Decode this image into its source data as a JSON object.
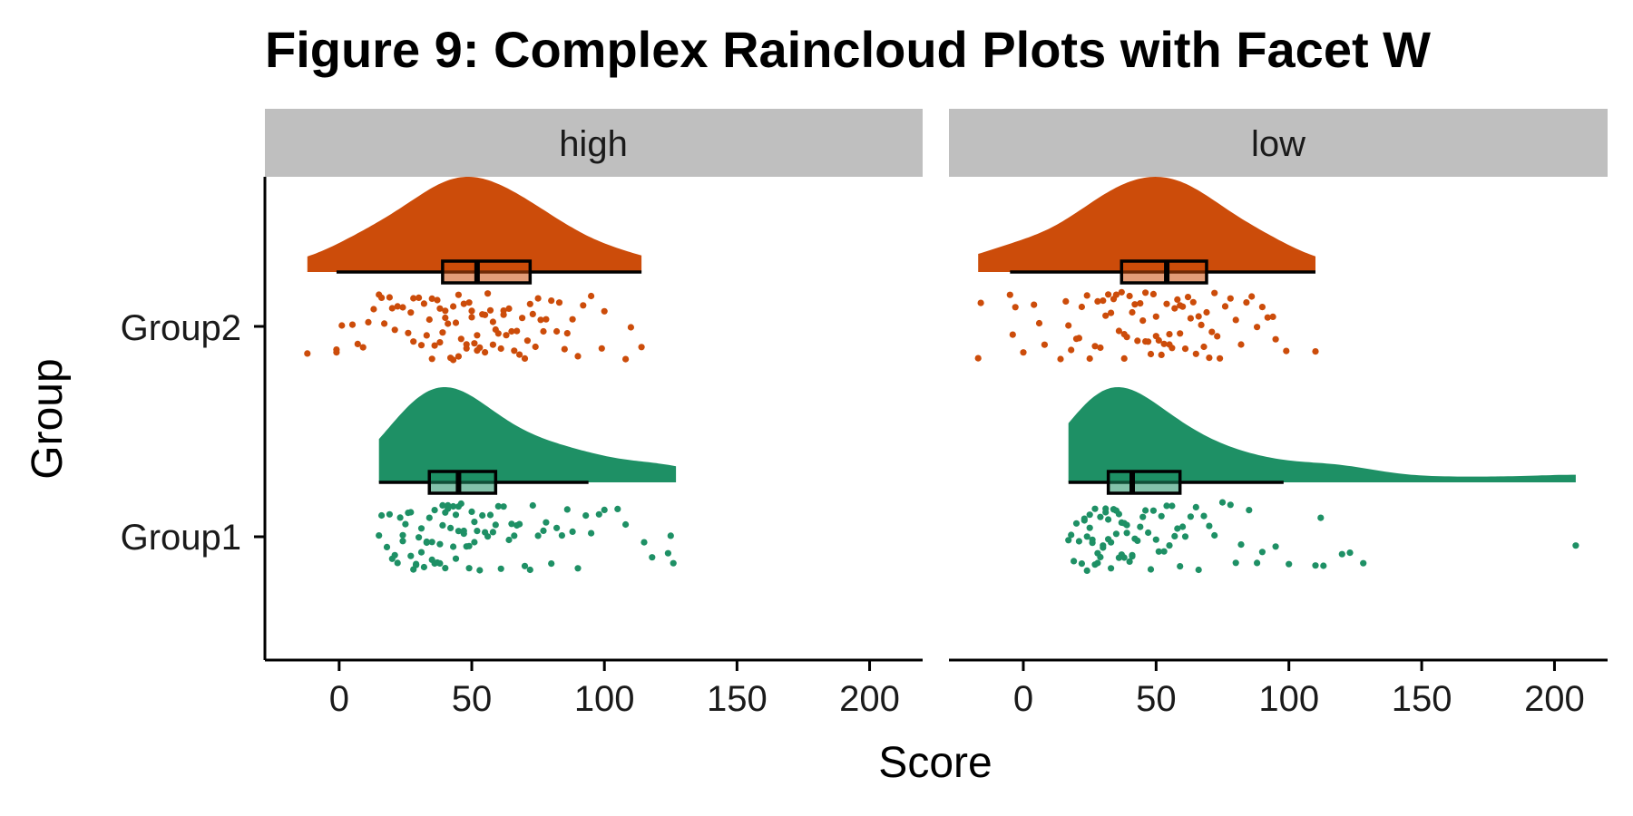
{
  "chart_data": {
    "type": "raincloud",
    "title": "Figure 9: Complex Raincloud Plots with Facet W",
    "xlabel": "Score",
    "ylabel": "Group",
    "xlim": [
      -28,
      220
    ],
    "x_ticks": [
      0,
      50,
      100,
      150,
      200
    ],
    "x_tick_labels": [
      "0",
      "50",
      "100",
      "150",
      "200"
    ],
    "categories": [
      "Group2",
      "Group1"
    ],
    "colors": {
      "Group2": "#cc4c0a",
      "Group1": "#1e9065",
      "strip_bg": "#bfbfbf"
    },
    "facets": [
      {
        "label": "high",
        "groups": [
          {
            "name": "Group2",
            "density_range": [
              -12,
              114
            ],
            "box": {
              "whisker_low": -1,
              "q1": 39,
              "median": 52,
              "q3": 72,
              "whisker_high": 114
            },
            "points": [
              -12,
              -1,
              -1,
              1,
              5,
              7,
              9,
              11,
              13,
              15,
              16,
              17,
              19,
              20,
              21,
              22,
              24,
              26,
              27,
              28,
              28,
              30,
              31,
              32,
              33,
              34,
              35,
              35,
              36,
              37,
              38,
              38,
              39,
              40,
              40,
              41,
              42,
              43,
              43,
              44,
              45,
              45,
              46,
              47,
              48,
              48,
              49,
              50,
              50,
              51,
              52,
              52,
              53,
              54,
              55,
              55,
              56,
              57,
              58,
              58,
              59,
              60,
              61,
              62,
              62,
              63,
              64,
              65,
              66,
              67,
              68,
              69,
              70,
              71,
              72,
              73,
              74,
              75,
              76,
              77,
              78,
              80,
              82,
              83,
              85,
              86,
              88,
              90,
              92,
              95,
              99,
              100,
              108,
              110,
              114
            ]
          },
          {
            "name": "Group1",
            "density_range": [
              15,
              127
            ],
            "box": {
              "whisker_low": 15,
              "q1": 34,
              "median": 45,
              "q3": 59,
              "whisker_high": 94
            },
            "points": [
              15,
              16,
              18,
              19,
              20,
              21,
              22,
              23,
              24,
              24,
              25,
              26,
              27,
              27,
              28,
              29,
              29,
              30,
              31,
              31,
              32,
              33,
              33,
              34,
              35,
              35,
              36,
              36,
              37,
              38,
              38,
              39,
              39,
              40,
              40,
              41,
              41,
              42,
              43,
              43,
              44,
              44,
              45,
              45,
              46,
              47,
              47,
              48,
              49,
              49,
              50,
              51,
              51,
              52,
              53,
              54,
              55,
              56,
              57,
              58,
              59,
              60,
              61,
              62,
              64,
              65,
              66,
              67,
              68,
              70,
              72,
              73,
              75,
              77,
              78,
              80,
              82,
              84,
              86,
              88,
              90,
              93,
              95,
              98,
              100,
              105,
              108,
              115,
              118,
              124,
              125,
              126
            ]
          }
        ]
      },
      {
        "label": "low",
        "groups": [
          {
            "name": "Group2",
            "density_range": [
              -17,
              110
            ],
            "box": {
              "whisker_low": -5,
              "q1": 37,
              "median": 54,
              "q3": 69,
              "whisker_high": 110
            },
            "points": [
              -17,
              -16,
              -5,
              -4,
              -3,
              0,
              4,
              6,
              8,
              14,
              16,
              17,
              18,
              20,
              21,
              22,
              24,
              25,
              27,
              28,
              29,
              30,
              31,
              32,
              33,
              34,
              35,
              36,
              37,
              38,
              38,
              39,
              40,
              41,
              42,
              43,
              44,
              45,
              46,
              46,
              47,
              48,
              49,
              50,
              50,
              51,
              52,
              53,
              54,
              55,
              55,
              56,
              57,
              58,
              59,
              59,
              60,
              61,
              62,
              63,
              64,
              65,
              66,
              67,
              68,
              69,
              70,
              71,
              72,
              73,
              74,
              76,
              78,
              80,
              82,
              84,
              86,
              88,
              90,
              92,
              94,
              95,
              99,
              110
            ]
          },
          {
            "name": "Group1",
            "density_range": [
              17,
              208
            ],
            "box": {
              "whisker_low": 17,
              "q1": 32,
              "median": 41,
              "q3": 59,
              "whisker_high": 98
            },
            "points": [
              17,
              18,
              19,
              20,
              21,
              22,
              23,
              23,
              24,
              24,
              25,
              25,
              26,
              26,
              27,
              27,
              28,
              28,
              29,
              29,
              30,
              30,
              31,
              31,
              32,
              32,
              33,
              33,
              34,
              34,
              35,
              35,
              36,
              36,
              37,
              37,
              38,
              38,
              39,
              39,
              40,
              41,
              41,
              42,
              43,
              44,
              45,
              46,
              47,
              48,
              49,
              50,
              51,
              52,
              53,
              54,
              55,
              56,
              57,
              58,
              59,
              60,
              61,
              63,
              65,
              66,
              68,
              70,
              72,
              75,
              78,
              80,
              82,
              85,
              88,
              90,
              95,
              100,
              110,
              112,
              113,
              120,
              123,
              128,
              208
            ]
          }
        ]
      }
    ]
  }
}
